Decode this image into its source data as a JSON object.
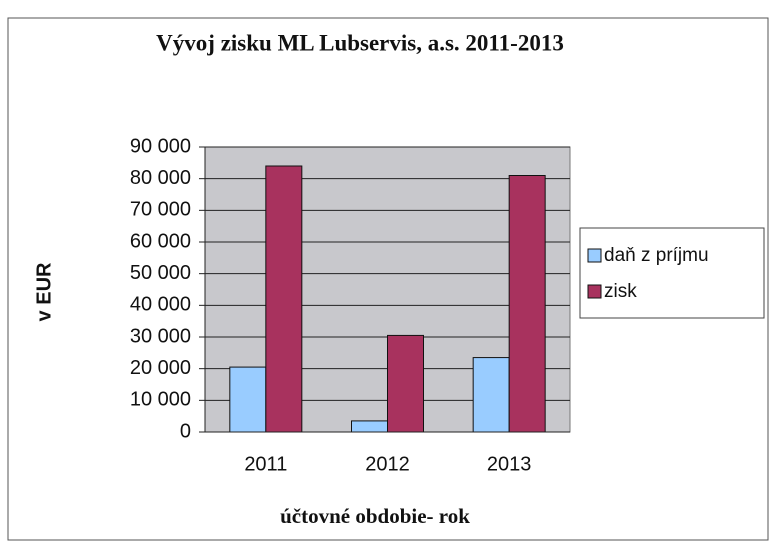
{
  "chart_data": {
    "type": "bar",
    "title": "Vývoj zisku ML Lubservis, a.s. 2011-2013",
    "y_label": "v EUR",
    "x_label": "účtovné obdobie- rok",
    "categories": [
      "2011",
      "2012",
      "2013"
    ],
    "series": [
      {
        "name": "daň z príjmu",
        "color": "#99ccff",
        "values": [
          20500,
          3500,
          23500
        ]
      },
      {
        "name": "zisk",
        "color": "#a8325e",
        "values": [
          84000,
          30500,
          81000
        ]
      }
    ],
    "ylim": [
      0,
      90000
    ],
    "yticks": [
      0,
      {
        "value": 10000,
        "label": "10 000"
      },
      {
        "value": 20000,
        "label": "20 000"
      },
      {
        "value": 30000,
        "label": "30 000"
      },
      {
        "value": 40000,
        "label": "40 000"
      },
      {
        "value": 50000,
        "label": "50 000"
      },
      {
        "value": 60000,
        "label": "60 000"
      },
      {
        "value": 70000,
        "label": "70 000"
      },
      {
        "value": 80000,
        "label": "80 000"
      },
      {
        "value": 90000,
        "label": "90 000"
      }
    ],
    "grid": true,
    "legend": "right"
  }
}
